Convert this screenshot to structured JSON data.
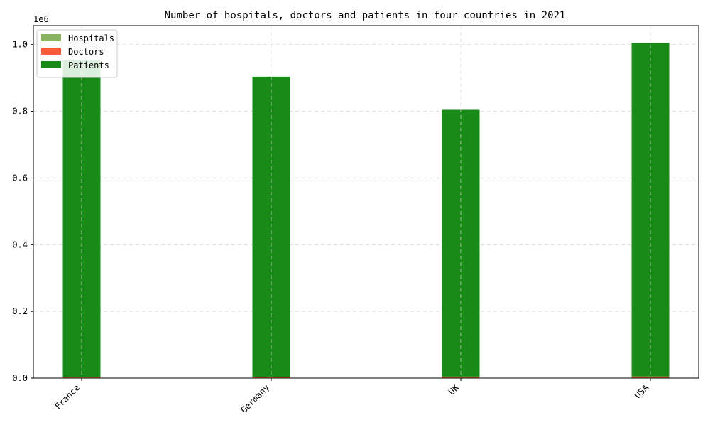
{
  "chart_data": {
    "type": "bar",
    "stacked": true,
    "title": "Number of hospitals, doctors and patients in four countries in 2021",
    "xlabel": "",
    "ylabel": "",
    "y_offset_label": "1e6",
    "categories": [
      "France",
      "Germany",
      "UK",
      "USA"
    ],
    "series": [
      {
        "name": "Hospitals",
        "color": "#8ab461",
        "values": [
          400,
          350,
          500,
          450
        ]
      },
      {
        "name": "Doctors",
        "color": "#fa5a3c",
        "values": [
          3000,
          3500,
          4000,
          4500
        ]
      },
      {
        "name": "Patients",
        "color": "#188a18",
        "values": [
          950000,
          900000,
          800000,
          1000000
        ]
      }
    ],
    "ylim": [
      0,
      1057000
    ],
    "yticks": [
      0,
      200000,
      400000,
      600000,
      800000,
      1000000
    ],
    "ytick_labels": [
      "0.0",
      "0.2",
      "0.4",
      "0.6",
      "0.8",
      "1.0"
    ],
    "grid": true,
    "grid_style": "dashed",
    "legend_position": "top-left",
    "xtick_rotation": 45
  }
}
